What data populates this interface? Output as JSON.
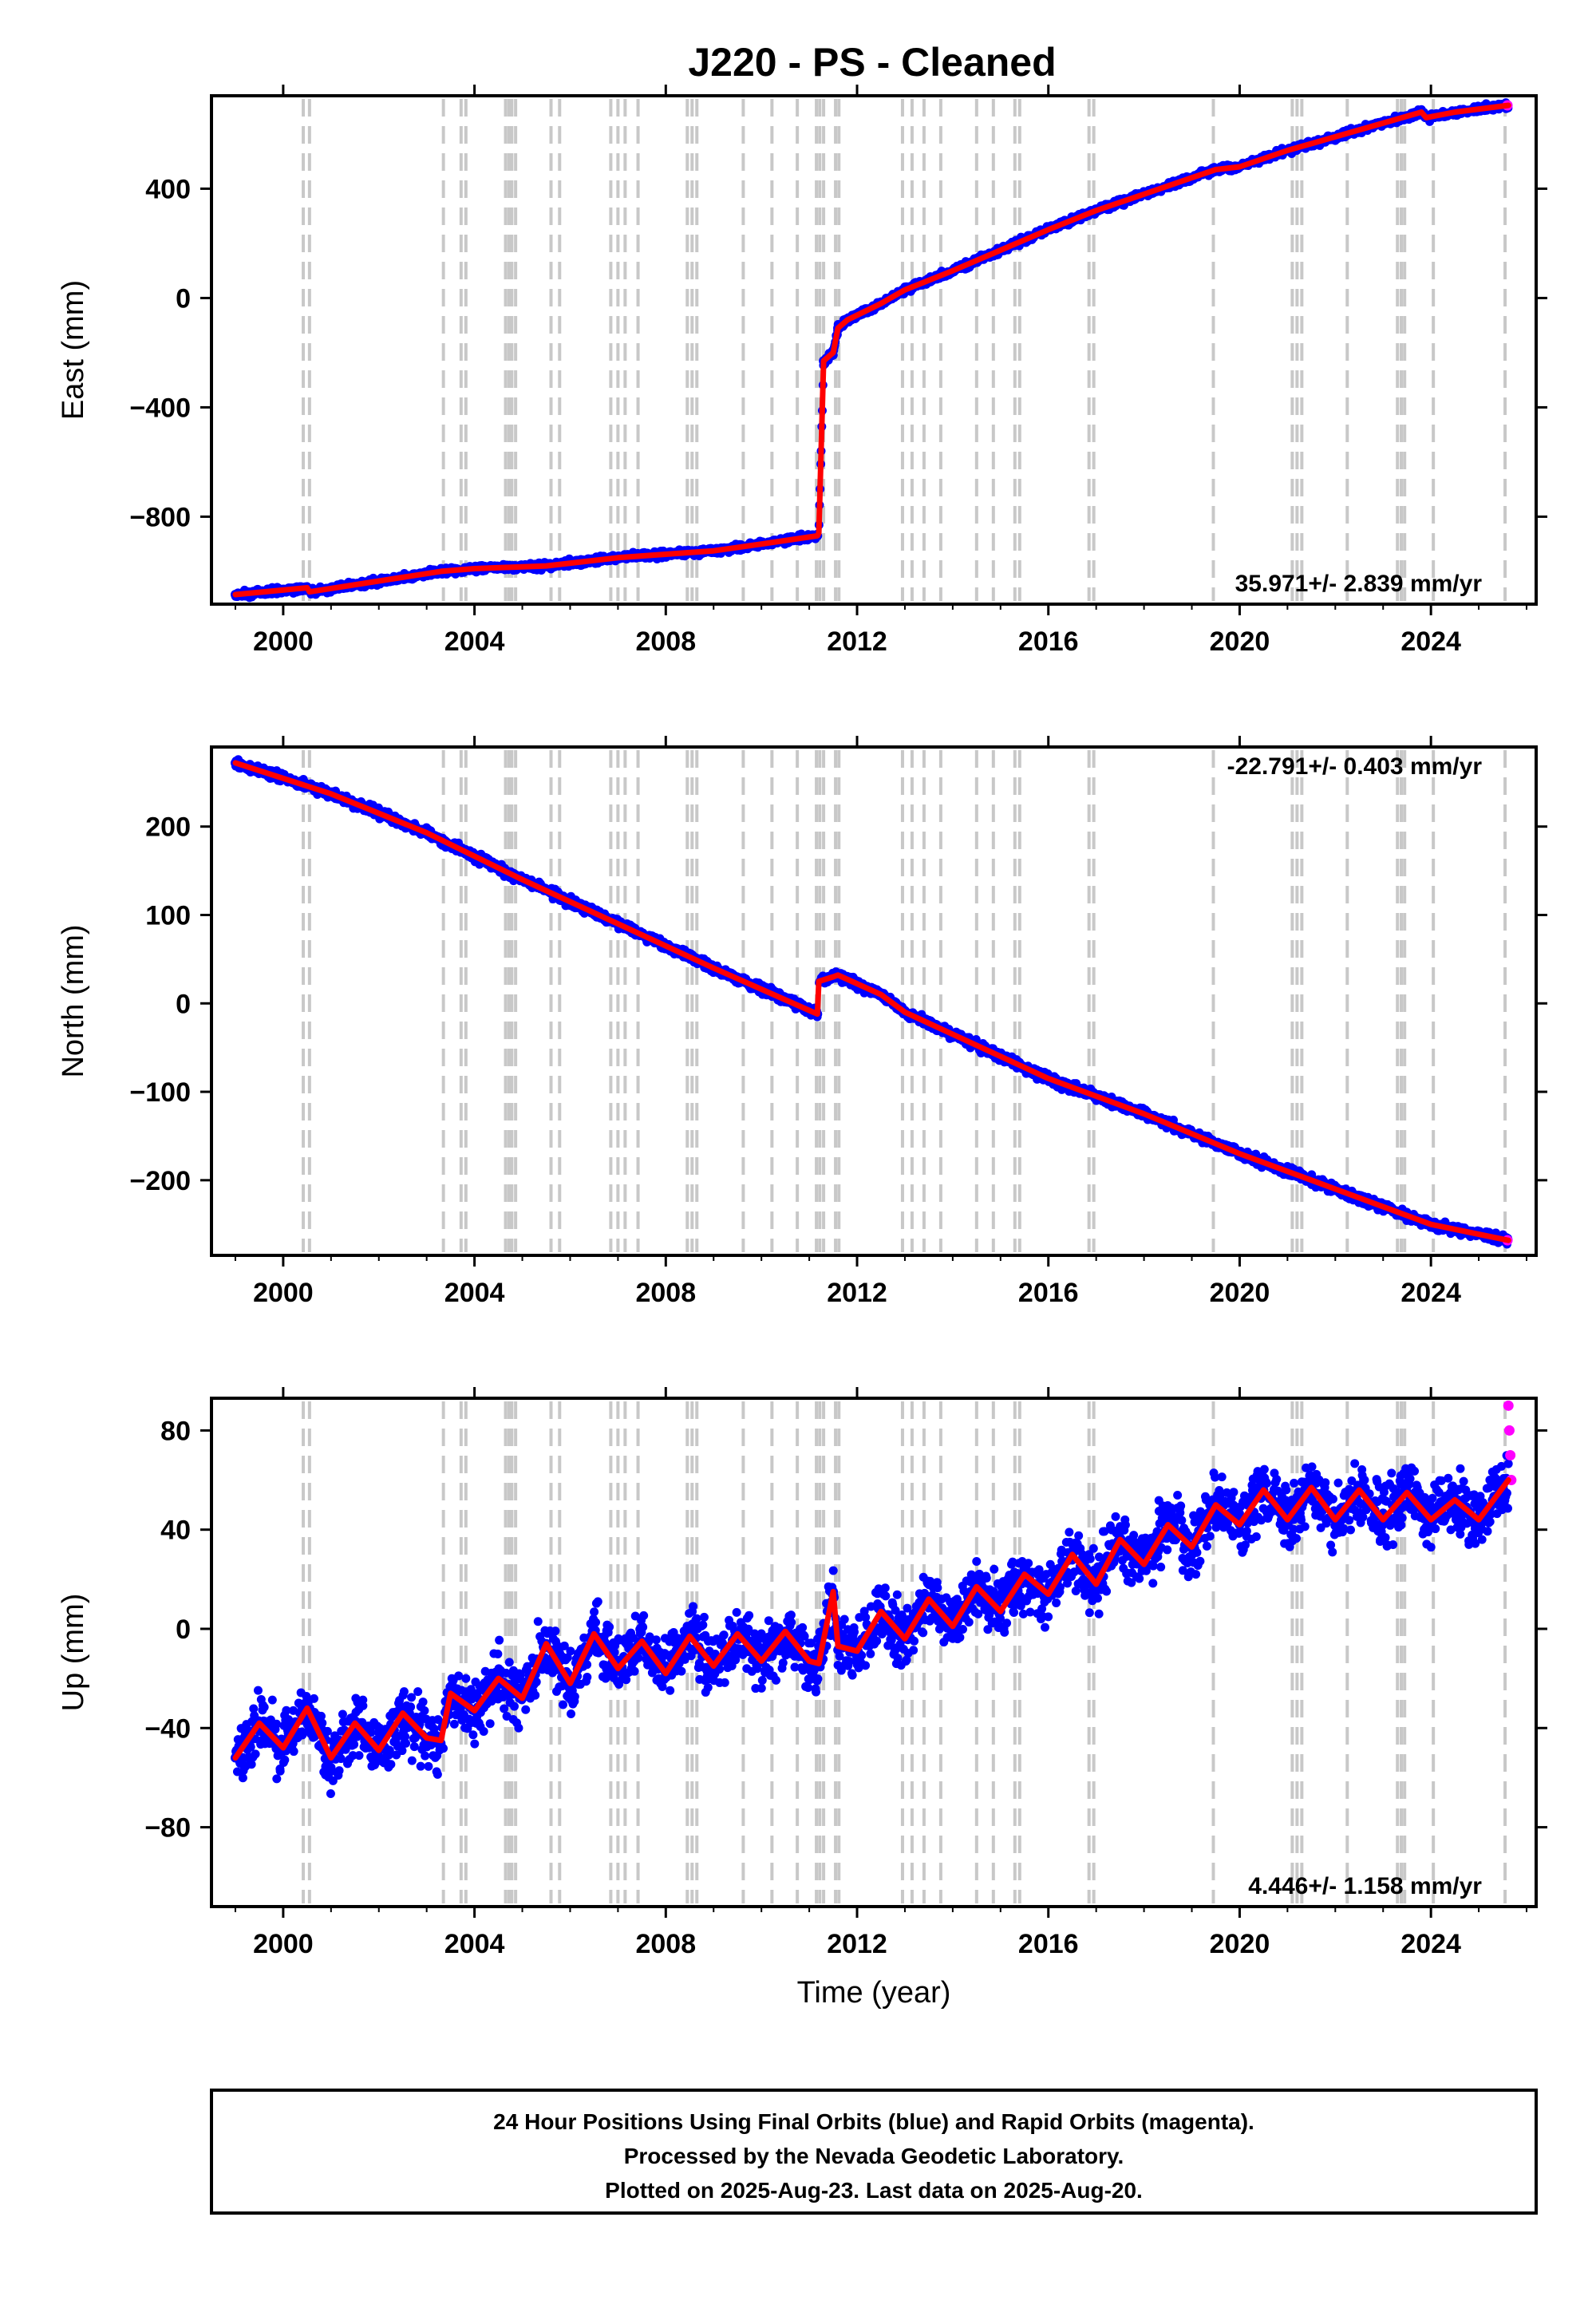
{
  "title": "J220  - PS - Cleaned",
  "caption": {
    "lines": [
      "24 Hour Positions Using Final Orbits (blue) and Rapid Orbits (magenta).",
      "Processed by the Nevada Geodetic Laboratory.",
      "Plotted on 2025-Aug-23. Last data on 2025-Aug-20."
    ]
  },
  "chart_data": [
    {
      "type": "scatter",
      "panel": "east",
      "ylabel": "East (mm)",
      "xlabel": "",
      "xlim": [
        1998.5,
        2026.2
      ],
      "ylim": [
        -1120,
        740
      ],
      "xticks": [
        2000,
        2004,
        2008,
        2012,
        2016,
        2020,
        2024
      ],
      "yticks": [
        400,
        0,
        -400,
        -800
      ],
      "ytick_labels": [
        "400",
        "0",
        "−400",
        "−800"
      ],
      "rate_label": "35.971+/- 2.839 mm/yr",
      "rate_position": "bottom-right",
      "grid": false,
      "colors": {
        "final": "#0000ff",
        "rapid": "#ff00ff",
        "model": "#ff0000",
        "steps": "#c8c8c8"
      },
      "step_epochs": [
        2000.42,
        2000.55,
        2003.35,
        2003.72,
        2003.82,
        2004.65,
        2004.72,
        2004.78,
        2004.86,
        2005.6,
        2005.78,
        2006.85,
        2007.0,
        2007.15,
        2007.42,
        2008.45,
        2008.55,
        2008.65,
        2009.62,
        2010.22,
        2010.75,
        2011.15,
        2011.22,
        2011.3,
        2011.55,
        2011.62,
        2012.95,
        2013.15,
        2013.4,
        2013.75,
        2014.5,
        2014.85,
        2015.3,
        2015.4,
        2016.85,
        2016.95,
        2019.45,
        2021.1,
        2021.2,
        2021.3,
        2022.25,
        2023.3,
        2023.38,
        2023.45,
        2024.05,
        2025.55
      ],
      "model_line": {
        "x": [
          1999.0,
          2000.5,
          2000.55,
          2003.3,
          2004.0,
          2005.5,
          2007.0,
          2009.0,
          2010.0,
          2011.17,
          2011.2,
          2011.3,
          2011.5,
          2011.6,
          2011.8,
          2012.5,
          2013.0,
          2014.0,
          2015.0,
          2016.0,
          2017.0,
          2018.0,
          2019.0,
          2019.5,
          2020.0,
          2021.0,
          2022.0,
          2023.0,
          2023.8,
          2023.9,
          2024.5,
          2025.62
        ],
        "y": [
          -1085,
          -1060,
          -1075,
          -1000,
          -990,
          -980,
          -950,
          -925,
          -900,
          -870,
          -860,
          -230,
          -200,
          -110,
          -80,
          -20,
          30,
          100,
          175,
          250,
          320,
          380,
          440,
          470,
          480,
          540,
          590,
          640,
          680,
          660,
          680,
          705
        ]
      },
      "final_points": {
        "x": [
          1999.0,
          2000.5,
          2003.3,
          2004.0,
          2005.5,
          2007.0,
          2009.0,
          2010.0,
          2011.17,
          2011.3,
          2011.6,
          2011.8,
          2012.5,
          2013.0,
          2014.0,
          2015.0,
          2016.0,
          2017.0,
          2018.0,
          2019.0,
          2020.0,
          2021.0,
          2022.0,
          2023.0,
          2023.8,
          2024.5,
          2025.55
        ],
        "y": [
          -1085,
          -1060,
          -1000,
          -990,
          -980,
          -950,
          -925,
          -900,
          -870,
          -230,
          -110,
          -80,
          -20,
          30,
          100,
          175,
          250,
          320,
          380,
          440,
          480,
          540,
          590,
          640,
          680,
          680,
          700
        ]
      },
      "rapid_points": {
        "x": [
          2025.6
        ],
        "y": [
          705
        ]
      }
    },
    {
      "type": "scatter",
      "panel": "north",
      "ylabel": "North (mm)",
      "xlabel": "",
      "xlim": [
        1998.5,
        2026.2
      ],
      "ylim": [
        -285,
        290
      ],
      "xticks": [
        2000,
        2004,
        2008,
        2012,
        2016,
        2020,
        2024
      ],
      "yticks": [
        200,
        100,
        0,
        -100,
        -200
      ],
      "ytick_labels": [
        "200",
        "100",
        "0",
        "−100",
        "−200"
      ],
      "rate_label": "-22.791+/- 0.403 mm/yr",
      "rate_position": "top-right",
      "grid": false,
      "colors": {
        "final": "#0000ff",
        "rapid": "#ff00ff",
        "model": "#ff0000",
        "steps": "#c8c8c8"
      },
      "step_epochs": [
        2000.42,
        2000.55,
        2003.35,
        2003.72,
        2003.82,
        2004.65,
        2004.72,
        2004.78,
        2004.86,
        2005.6,
        2005.78,
        2006.85,
        2007.0,
        2007.15,
        2007.42,
        2008.45,
        2008.55,
        2008.65,
        2009.62,
        2010.22,
        2010.75,
        2011.15,
        2011.22,
        2011.3,
        2011.55,
        2011.62,
        2012.95,
        2013.15,
        2013.4,
        2013.75,
        2014.5,
        2014.85,
        2015.3,
        2015.4,
        2016.85,
        2016.95,
        2019.45,
        2021.1,
        2021.2,
        2021.3,
        2022.25,
        2023.3,
        2023.38,
        2023.45,
        2024.05,
        2025.55
      ],
      "model_line": {
        "x": [
          1999.0,
          2001.0,
          2003.0,
          2005.0,
          2007.0,
          2009.0,
          2011.17,
          2011.2,
          2011.5,
          2011.6,
          2012.5,
          2013.0,
          2014.0,
          2016.0,
          2018.0,
          2020.0,
          2022.0,
          2024.0,
          2025.62
        ],
        "y": [
          272,
          237,
          193,
          140,
          90,
          40,
          -12,
          25,
          30,
          32,
          10,
          -10,
          -35,
          -85,
          -125,
          -170,
          -210,
          -250,
          -268
        ]
      },
      "final_points": {
        "x": [
          1999.0,
          2001.0,
          2003.0,
          2005.0,
          2007.0,
          2009.0,
          2011.17,
          2011.5,
          2012.5,
          2014.0,
          2016.0,
          2018.0,
          2020.0,
          2022.0,
          2024.0,
          2025.55
        ],
        "y": [
          272,
          237,
          193,
          140,
          90,
          40,
          -12,
          30,
          10,
          -35,
          -85,
          -125,
          -170,
          -210,
          -250,
          -266
        ]
      },
      "rapid_points": {
        "x": [
          2025.6
        ],
        "y": [
          -268
        ]
      }
    },
    {
      "type": "scatter",
      "panel": "up",
      "ylabel": "Up (mm)",
      "xlabel": "Time (year)",
      "xlim": [
        1998.5,
        2026.2
      ],
      "ylim": [
        -112,
        93
      ],
      "xticks": [
        2000,
        2004,
        2008,
        2012,
        2016,
        2020,
        2024
      ],
      "yticks": [
        80,
        40,
        0,
        -40,
        -80
      ],
      "ytick_labels": [
        "80",
        "40",
        "0",
        "−40",
        "−80"
      ],
      "rate_label": "4.446+/- 1.158 mm/yr",
      "rate_position": "bottom-right",
      "grid": false,
      "colors": {
        "final": "#0000ff",
        "rapid": "#ff00ff",
        "model": "#ff0000",
        "steps": "#c8c8c8"
      },
      "step_epochs": [
        2000.42,
        2000.55,
        2003.35,
        2003.72,
        2003.82,
        2004.65,
        2004.72,
        2004.78,
        2004.86,
        2005.6,
        2005.78,
        2006.85,
        2007.0,
        2007.15,
        2007.42,
        2008.45,
        2008.55,
        2008.65,
        2009.62,
        2010.22,
        2010.75,
        2011.15,
        2011.22,
        2011.3,
        2011.55,
        2011.62,
        2012.95,
        2013.15,
        2013.4,
        2013.75,
        2014.5,
        2014.85,
        2015.3,
        2015.4,
        2016.85,
        2016.95,
        2019.45,
        2021.1,
        2021.2,
        2021.3,
        2022.25,
        2023.3,
        2023.38,
        2023.45,
        2024.05,
        2025.55
      ],
      "model_line": {
        "x": [
          1999.0,
          1999.5,
          2000.0,
          2000.5,
          2001.0,
          2001.5,
          2002.0,
          2002.5,
          2003.0,
          2003.3,
          2003.5,
          2004.0,
          2004.5,
          2005.0,
          2005.5,
          2006.0,
          2006.5,
          2007.0,
          2007.5,
          2008.0,
          2008.5,
          2009.0,
          2009.5,
          2010.0,
          2010.5,
          2011.0,
          2011.2,
          2011.5,
          2011.6,
          2012.0,
          2012.5,
          2013.0,
          2013.5,
          2014.0,
          2014.5,
          2015.0,
          2015.5,
          2016.0,
          2016.5,
          2017.0,
          2017.5,
          2018.0,
          2018.5,
          2019.0,
          2019.5,
          2020.0,
          2020.5,
          2021.0,
          2021.5,
          2022.0,
          2022.5,
          2023.0,
          2023.5,
          2024.0,
          2024.5,
          2025.0,
          2025.62
        ],
        "y": [
          -52,
          -38,
          -48,
          -32,
          -52,
          -38,
          -49,
          -34,
          -44,
          -45,
          -26,
          -33,
          -20,
          -28,
          -6,
          -22,
          -2,
          -16,
          -5,
          -18,
          -3,
          -15,
          -2,
          -13,
          -1,
          -13,
          -14,
          15,
          -7,
          -9,
          7,
          -4,
          12,
          1,
          17,
          7,
          22,
          14,
          30,
          18,
          36,
          26,
          42,
          33,
          50,
          42,
          56,
          44,
          57,
          44,
          56,
          44,
          55,
          44,
          52,
          44,
          60
        ]
      },
      "final_points": {
        "x": [
          1999.0,
          1999.5,
          2000.0,
          2000.5,
          2001.0,
          2001.5,
          2002.0,
          2002.5,
          2003.0,
          2003.5,
          2004.0,
          2004.5,
          2005.0,
          2005.5,
          2006.0,
          2006.5,
          2007.0,
          2007.5,
          2008.0,
          2008.5,
          2009.0,
          2009.5,
          2010.0,
          2010.5,
          2011.0,
          2011.5,
          2012.0,
          2012.5,
          2013.0,
          2013.5,
          2014.0,
          2014.5,
          2015.0,
          2015.5,
          2016.0,
          2016.5,
          2017.0,
          2017.5,
          2018.0,
          2018.5,
          2019.0,
          2019.5,
          2020.0,
          2020.5,
          2021.0,
          2021.5,
          2022.0,
          2022.5,
          2023.0,
          2023.5,
          2024.0,
          2024.5,
          2025.0,
          2025.5
        ],
        "y": [
          -52,
          -38,
          -48,
          -32,
          -52,
          -38,
          -49,
          -34,
          -44,
          -26,
          -33,
          -20,
          -28,
          -6,
          -22,
          -2,
          -16,
          -5,
          -18,
          -3,
          -15,
          -2,
          -13,
          -1,
          -13,
          15,
          -9,
          7,
          -4,
          12,
          1,
          17,
          7,
          22,
          14,
          30,
          18,
          36,
          26,
          42,
          33,
          50,
          42,
          56,
          44,
          57,
          44,
          56,
          44,
          55,
          44,
          52,
          44,
          58
        ]
      },
      "rapid_points": {
        "x": [
          2025.62,
          2025.64,
          2025.66,
          2025.68
        ],
        "y": [
          90,
          80,
          70,
          60
        ]
      }
    }
  ]
}
